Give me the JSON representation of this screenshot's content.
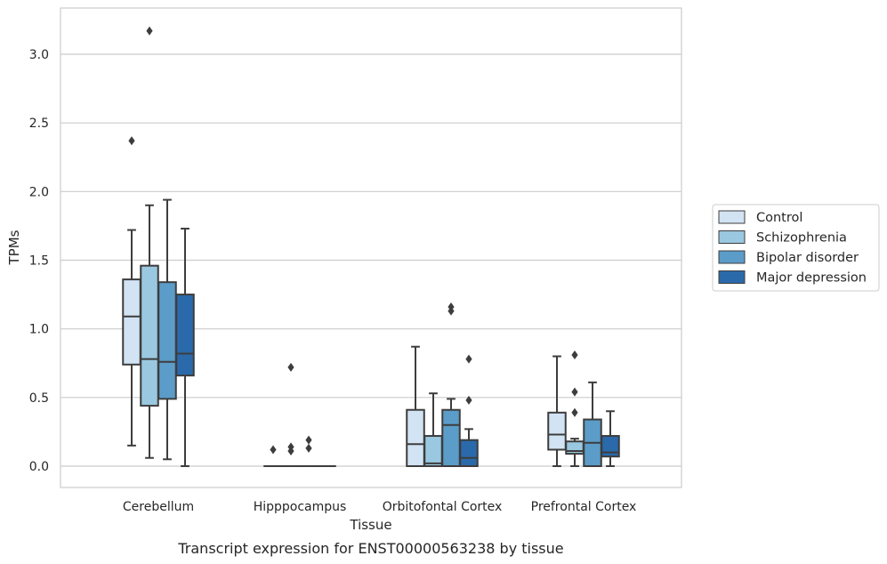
{
  "chart_data": {
    "type": "box",
    "caption": "Transcript expression for ENST00000563238 by tissue",
    "xlabel": "Tissue",
    "ylabel": "TPMs",
    "ylim": [
      -0.15,
      3.32
    ],
    "yticks": [
      0.0,
      0.5,
      1.0,
      1.5,
      2.0,
      2.5,
      3.0
    ],
    "ytick_labels": [
      "0.0",
      "0.5",
      "1.0",
      "1.5",
      "2.0",
      "2.5",
      "3.0"
    ],
    "grid": "horizontal",
    "legend_position": "right",
    "categories": [
      "Cerebellum",
      "Hipppocampus",
      "Orbitofontal Cortex",
      "Prefrontal Cortex"
    ],
    "series": [
      {
        "name": "Control",
        "color": "#d2e3f3",
        "boxes": [
          {
            "whislo": 0.15,
            "q1": 0.74,
            "med": 1.09,
            "q3": 1.36,
            "whishi": 1.72,
            "fliers": [
              2.37
            ]
          },
          {
            "whislo": 0.0,
            "q1": 0.0,
            "med": 0.0,
            "q3": 0.0,
            "whishi": 0.0,
            "fliers": [
              0.12
            ]
          },
          {
            "whislo": 0.0,
            "q1": 0.0,
            "med": 0.16,
            "q3": 0.41,
            "whishi": 0.87,
            "fliers": []
          },
          {
            "whislo": 0.0,
            "q1": 0.12,
            "med": 0.23,
            "q3": 0.39,
            "whishi": 0.8,
            "fliers": []
          }
        ]
      },
      {
        "name": "Schizophrenia",
        "color": "#9ac8e0",
        "boxes": [
          {
            "whislo": 0.06,
            "q1": 0.44,
            "med": 0.78,
            "q3": 1.46,
            "whishi": 1.9,
            "fliers": [
              3.17
            ]
          },
          {
            "whislo": 0.0,
            "q1": 0.0,
            "med": 0.0,
            "q3": 0.0,
            "whishi": 0.0,
            "fliers": [
              0.72,
              0.14,
              0.11
            ]
          },
          {
            "whislo": 0.0,
            "q1": 0.0,
            "med": 0.02,
            "q3": 0.22,
            "whishi": 0.53,
            "fliers": []
          },
          {
            "whislo": 0.0,
            "q1": 0.09,
            "med": 0.11,
            "q3": 0.18,
            "whishi": 0.2,
            "fliers": [
              0.81,
              0.54,
              0.39
            ]
          }
        ]
      },
      {
        "name": "Bipolar disorder",
        "color": "#5b9cc9",
        "boxes": [
          {
            "whislo": 0.05,
            "q1": 0.49,
            "med": 0.76,
            "q3": 1.34,
            "whishi": 1.94,
            "fliers": []
          },
          {
            "whislo": 0.0,
            "q1": 0.0,
            "med": 0.0,
            "q3": 0.0,
            "whishi": 0.0,
            "fliers": [
              0.19,
              0.13
            ]
          },
          {
            "whislo": 0.0,
            "q1": 0.0,
            "med": 0.3,
            "q3": 0.41,
            "whishi": 0.49,
            "fliers": [
              1.16,
              1.13
            ]
          },
          {
            "whislo": 0.0,
            "q1": 0.0,
            "med": 0.17,
            "q3": 0.34,
            "whishi": 0.61,
            "fliers": []
          }
        ]
      },
      {
        "name": "Major depression",
        "color": "#2a6aab",
        "boxes": [
          {
            "whislo": 0.0,
            "q1": 0.66,
            "med": 0.82,
            "q3": 1.25,
            "whishi": 1.73,
            "fliers": []
          },
          {
            "whislo": 0.0,
            "q1": 0.0,
            "med": 0.0,
            "q3": 0.0,
            "whishi": 0.0,
            "fliers": []
          },
          {
            "whislo": 0.0,
            "q1": 0.0,
            "med": 0.06,
            "q3": 0.19,
            "whishi": 0.27,
            "fliers": [
              0.78,
              0.48
            ]
          },
          {
            "whislo": 0.0,
            "q1": 0.07,
            "med": 0.1,
            "q3": 0.22,
            "whishi": 0.4,
            "fliers": []
          }
        ]
      }
    ]
  }
}
